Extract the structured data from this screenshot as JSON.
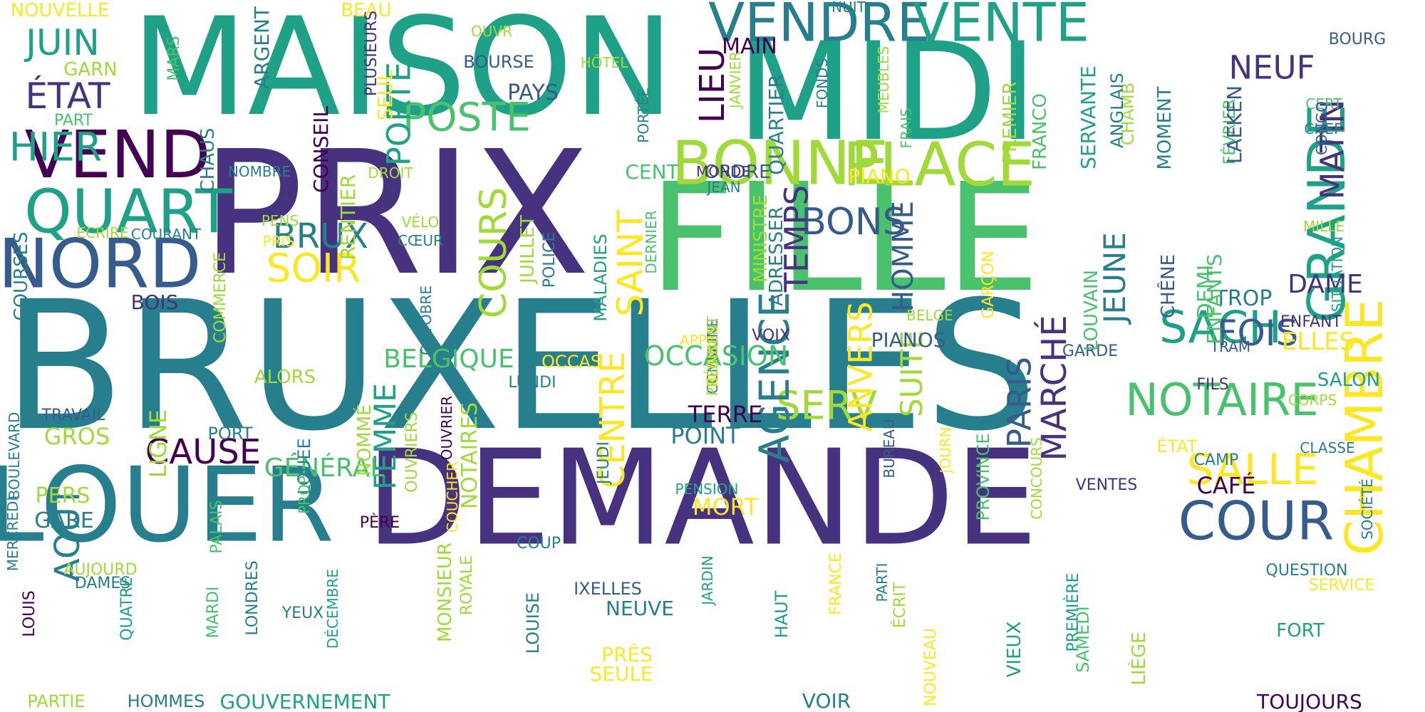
{
  "title": "",
  "palette": [
    "#440154",
    "#46327e",
    "#365c8d",
    "#277f8e",
    "#1fa187",
    "#4ac16d",
    "#a0da39",
    "#fde725"
  ],
  "words": [
    {
      "text": "BRUXELLES",
      "color": "#277f8e",
      "vertical": false
    },
    {
      "text": "MAISON",
      "color": "#1fa187",
      "vertical": false
    },
    {
      "text": "DEMANDE",
      "color": "#46327e",
      "vertical": false
    },
    {
      "text": "PRIX",
      "color": "#46327e",
      "vertical": false
    },
    {
      "text": "FILLE",
      "color": "#4ac16d",
      "vertical": false
    },
    {
      "text": "MIDI",
      "color": "#1fa187",
      "vertical": false
    },
    {
      "text": "LOUER",
      "color": "#277f8e",
      "vertical": false
    },
    {
      "text": "VENDRE",
      "color": "#277f8e",
      "vertical": false
    },
    {
      "text": "VENTE",
      "color": "#1fa187",
      "vertical": false
    },
    {
      "text": "BONNE",
      "color": "#a0da39",
      "vertical": false
    },
    {
      "text": "PLACE",
      "color": "#a0da39",
      "vertical": false
    },
    {
      "text": "GRANDE",
      "color": "#1fa187",
      "vertical": true
    },
    {
      "text": "CHAMBRE",
      "color": "#fde725",
      "vertical": true
    },
    {
      "text": "VEND",
      "color": "#440154",
      "vertical": false
    },
    {
      "text": "QUART",
      "color": "#1fa187",
      "vertical": false
    },
    {
      "text": "NORD",
      "color": "#365c8d",
      "vertical": false
    },
    {
      "text": "COUR",
      "color": "#365c8d",
      "vertical": false
    },
    {
      "text": "NOTAIRE",
      "color": "#4ac16d",
      "vertical": false
    },
    {
      "text": "SALLE",
      "color": "#fde725",
      "vertical": false
    },
    {
      "text": "SACH",
      "color": "#1fa187",
      "vertical": false
    },
    {
      "text": "FOIS",
      "color": "#365c8d",
      "vertical": false
    },
    {
      "text": "SERV",
      "color": "#a0da39",
      "vertical": false
    },
    {
      "text": "AGENCE",
      "color": "#277f8e",
      "vertical": true
    },
    {
      "text": "CAUSE",
      "color": "#440154",
      "vertical": false
    },
    {
      "text": "POSTE",
      "color": "#4ac16d",
      "vertical": false
    },
    {
      "text": "SOIR",
      "color": "#fde725",
      "vertical": false
    },
    {
      "text": "BRUX",
      "color": "#277f8e",
      "vertical": false
    },
    {
      "text": "BONS",
      "color": "#365c8d",
      "vertical": false
    },
    {
      "text": "HIER",
      "color": "#1fa187",
      "vertical": false
    },
    {
      "text": "ÉTAT",
      "color": "#46327e",
      "vertical": false
    },
    {
      "text": "JUIN",
      "color": "#1fa187",
      "vertical": false
    },
    {
      "text": "NEUF",
      "color": "#46327e",
      "vertical": false
    },
    {
      "text": "MATIN",
      "color": "#46327e",
      "vertical": true
    },
    {
      "text": "LIEU",
      "color": "#440154",
      "vertical": true
    },
    {
      "text": "COURS",
      "color": "#a0da39",
      "vertical": true
    },
    {
      "text": "SAINT",
      "color": "#fde725",
      "vertical": true
    },
    {
      "text": "TEMPS",
      "color": "#46327e",
      "vertical": true
    },
    {
      "text": "JEUNE",
      "color": "#277f8e",
      "vertical": true
    },
    {
      "text": "HOMME",
      "color": "#365c8d",
      "vertical": true
    },
    {
      "text": "ANVERS",
      "color": "#fde725",
      "vertical": true
    },
    {
      "text": "SUITE",
      "color": "#a0da39",
      "vertical": true
    },
    {
      "text": "PARIS",
      "color": "#365c8d",
      "vertical": true
    },
    {
      "text": "MARCHÉ",
      "color": "#46327e",
      "vertical": true
    },
    {
      "text": "CENTRE",
      "color": "#fde725",
      "vertical": true
    },
    {
      "text": "FEMME",
      "color": "#1fa187",
      "vertical": true
    },
    {
      "text": "PORTE",
      "color": "#1fa187",
      "vertical": true
    },
    {
      "text": "AOÛT",
      "color": "#277f8e",
      "vertical": true
    },
    {
      "text": "GÉNÉRAL",
      "color": "#4ac16d",
      "vertical": false
    },
    {
      "text": "OCCASION",
      "color": "#4ac16d",
      "vertical": false
    },
    {
      "text": "BELGIQUE",
      "color": "#4ac16d",
      "vertical": false
    },
    {
      "text": "DAME",
      "color": "#46327e",
      "vertical": false
    },
    {
      "text": "ELLES",
      "color": "#fde725",
      "vertical": false
    },
    {
      "text": "GROS",
      "color": "#a0da39",
      "vertical": false
    },
    {
      "text": "PERS",
      "color": "#a0da39",
      "vertical": false
    },
    {
      "text": "GARE",
      "color": "#277f8e",
      "vertical": false
    },
    {
      "text": "POINT",
      "color": "#277f8e",
      "vertical": false
    },
    {
      "text": "TERRE",
      "color": "#440154",
      "vertical": false
    },
    {
      "text": "MORT",
      "color": "#fde725",
      "vertical": false
    },
    {
      "text": "NEUVE",
      "color": "#277f8e",
      "vertical": false
    },
    {
      "text": "PRÉS",
      "color": "#fde725",
      "vertical": false
    },
    {
      "text": "SEULE",
      "color": "#fde725",
      "vertical": false
    },
    {
      "text": "PIANO",
      "color": "#fde725",
      "vertical": false
    },
    {
      "text": "PIANOS",
      "color": "#365c8d",
      "vertical": false
    },
    {
      "text": "PAYS",
      "color": "#365c8d",
      "vertical": false
    },
    {
      "text": "BOURSE",
      "color": "#365c8d",
      "vertical": false
    },
    {
      "text": "MAIN",
      "color": "#440154",
      "vertical": false
    },
    {
      "text": "CENT",
      "color": "#4ac16d",
      "vertical": false
    },
    {
      "text": "ORDRE",
      "color": "#365c8d",
      "vertical": false
    },
    {
      "text": "ALORS",
      "color": "#a0da39",
      "vertical": false
    },
    {
      "text": "BOIS",
      "color": "#46327e",
      "vertical": false
    },
    {
      "text": "TRAVAIL",
      "color": "#365c8d",
      "vertical": false
    },
    {
      "text": "PORT",
      "color": "#277f8e",
      "vertical": false
    },
    {
      "text": "CAFÉ",
      "color": "#440154",
      "vertical": false
    },
    {
      "text": "SALON",
      "color": "#1fa187",
      "vertical": false
    },
    {
      "text": "FORT",
      "color": "#1fa187",
      "vertical": false
    },
    {
      "text": "SERVICE",
      "color": "#fde725",
      "vertical": false
    },
    {
      "text": "TOUJOURS",
      "color": "#440154",
      "vertical": false
    },
    {
      "text": "QUESTION",
      "color": "#277f8e",
      "vertical": false
    },
    {
      "text": "GOUVERNEMENT",
      "color": "#1fa187",
      "vertical": false
    },
    {
      "text": "PARTIE",
      "color": "#a0da39",
      "vertical": false
    },
    {
      "text": "HOMMES",
      "color": "#277f8e",
      "vertical": false
    },
    {
      "text": "VOIR",
      "color": "#277f8e",
      "vertical": false
    },
    {
      "text": "IXELLES",
      "color": "#365c8d",
      "vertical": false
    },
    {
      "text": "COUP",
      "color": "#277f8e",
      "vertical": false
    },
    {
      "text": "AUJOURD",
      "color": "#a0da39",
      "vertical": false
    },
    {
      "text": "DAMES",
      "color": "#277f8e",
      "vertical": false
    },
    {
      "text": "YEUX",
      "color": "#277f8e",
      "vertical": false
    },
    {
      "text": "PÈRE",
      "color": "#440154",
      "vertical": false
    },
    {
      "text": "PENSION",
      "color": "#1fa187",
      "vertical": false
    },
    {
      "text": "VENTES",
      "color": "#46327e",
      "vertical": false
    },
    {
      "text": "CAMP",
      "color": "#277f8e",
      "vertical": false
    },
    {
      "text": "ÉTAT",
      "color": "#fde725",
      "vertical": false
    },
    {
      "text": "CLASSE",
      "color": "#277f8e",
      "vertical": false
    },
    {
      "text": "CORPS",
      "color": "#a0da39",
      "vertical": false
    },
    {
      "text": "FILS",
      "color": "#46327e",
      "vertical": false
    },
    {
      "text": "ENFANT",
      "color": "#46327e",
      "vertical": false
    },
    {
      "text": "TRAM",
      "color": "#365c8d",
      "vertical": false
    },
    {
      "text": "GARDE",
      "color": "#365c8d",
      "vertical": false
    },
    {
      "text": "MILLE",
      "color": "#a0da39",
      "vertical": false
    },
    {
      "text": "CHEF",
      "color": "#277f8e",
      "vertical": false
    },
    {
      "text": "CERT",
      "color": "#4ac16d",
      "vertical": false
    },
    {
      "text": "BOURG",
      "color": "#365c8d",
      "vertical": false
    },
    {
      "text": "LUNDI",
      "color": "#277f8e",
      "vertical": false
    },
    {
      "text": "OCCAS",
      "color": "#fde725",
      "vertical": false
    },
    {
      "text": "APPR",
      "color": "#fde725",
      "vertical": false
    },
    {
      "text": "VOIX",
      "color": "#46327e",
      "vertical": false
    },
    {
      "text": "BELGE",
      "color": "#a0da39",
      "vertical": false
    },
    {
      "text": "MONDE",
      "color": "#46327e",
      "vertical": false
    },
    {
      "text": "JEAN",
      "color": "#277f8e",
      "vertical": false
    },
    {
      "text": "NOMBRE",
      "color": "#277f8e",
      "vertical": false
    },
    {
      "text": "DROIT",
      "color": "#a0da39",
      "vertical": false
    },
    {
      "text": "ECRIRE",
      "color": "#a0da39",
      "vertical": false
    },
    {
      "text": "COURANT",
      "color": "#277f8e",
      "vertical": false
    },
    {
      "text": "PENS",
      "color": "#a0da39",
      "vertical": false
    },
    {
      "text": "PRIS",
      "color": "#fde725",
      "vertical": false
    },
    {
      "text": "VÉLO",
      "color": "#a0da39",
      "vertical": false
    },
    {
      "text": "CŒUR",
      "color": "#277f8e",
      "vertical": false
    },
    {
      "text": "GARN",
      "color": "#a0da39",
      "vertical": false
    },
    {
      "text": "PART",
      "color": "#4ac16d",
      "vertical": false
    },
    {
      "text": "NOUVELLE",
      "color": "#fde725",
      "vertical": false
    },
    {
      "text": "BEAU",
      "color": "#fde725",
      "vertical": false
    },
    {
      "text": "OUVR",
      "color": "#a0da39",
      "vertical": false
    },
    {
      "text": "HÔTEL",
      "color": "#a0da39",
      "vertical": false
    },
    {
      "text": "NUIT",
      "color": "#277f8e",
      "vertical": false
    },
    {
      "text": "TROP",
      "color": "#277f8e",
      "vertical": false
    },
    {
      "text": "DEMI",
      "color": "#4ac16d",
      "vertical": true
    },
    {
      "text": "ENFANTS",
      "color": "#4ac16d",
      "vertical": true
    },
    {
      "text": "CHÊNE",
      "color": "#365c8d",
      "vertical": true
    },
    {
      "text": "LOUVAIN",
      "color": "#4ac16d",
      "vertical": true
    },
    {
      "text": "GARÇON",
      "color": "#fde725",
      "vertical": true
    },
    {
      "text": "QUARTIER",
      "color": "#277f8e",
      "vertical": true
    },
    {
      "text": "ADRESSER",
      "color": "#277f8e",
      "vertical": true
    },
    {
      "text": "MINISTRE",
      "color": "#a0da39",
      "vertical": true
    },
    {
      "text": "JUILLET",
      "color": "#a0da39",
      "vertical": true
    },
    {
      "text": "POLICE",
      "color": "#277f8e",
      "vertical": true
    },
    {
      "text": "MALADIES",
      "color": "#1fa187",
      "vertical": true
    },
    {
      "text": "DERNIER",
      "color": "#4ac16d",
      "vertical": true
    },
    {
      "text": "RENTIER",
      "color": "#a0da39",
      "vertical": true
    },
    {
      "text": "CONSEIL",
      "color": "#440154",
      "vertical": true
    },
    {
      "text": "SEUL",
      "color": "#fde725",
      "vertical": true
    },
    {
      "text": "PLUSIEURS",
      "color": "#46327e",
      "vertical": true
    },
    {
      "text": "ARGENT",
      "color": "#277f8e",
      "vertical": true
    },
    {
      "text": "MARS",
      "color": "#4ac16d",
      "vertical": true
    },
    {
      "text": "CHAUS",
      "color": "#277f8e",
      "vertical": true
    },
    {
      "text": "COURSES",
      "color": "#277f8e",
      "vertical": true
    },
    {
      "text": "COMMERCE",
      "color": "#a0da39",
      "vertical": true
    },
    {
      "text": "OCTOBRE",
      "color": "#277f8e",
      "vertical": true
    },
    {
      "text": "LIGNE",
      "color": "#a0da39",
      "vertical": true
    },
    {
      "text": "BOULEVARD",
      "color": "#277f8e",
      "vertical": true
    },
    {
      "text": "MERCREDI",
      "color": "#277f8e",
      "vertical": true
    },
    {
      "text": "PALAIS",
      "color": "#4ac16d",
      "vertical": true
    },
    {
      "text": "LOUÉE",
      "color": "#277f8e",
      "vertical": true
    },
    {
      "text": "PROP",
      "color": "#4ac16d",
      "vertical": true
    },
    {
      "text": "NOMMÉ",
      "color": "#a0da39",
      "vertical": true
    },
    {
      "text": "OUVRIERS",
      "color": "#a0da39",
      "vertical": true
    },
    {
      "text": "COUCHER",
      "color": "#fde725",
      "vertical": true
    },
    {
      "text": "NOTAIRES",
      "color": "#a0da39",
      "vertical": true
    },
    {
      "text": "OUVRIER",
      "color": "#440154",
      "vertical": true
    },
    {
      "text": "JEUDI",
      "color": "#277f8e",
      "vertical": true
    },
    {
      "text": "MONSIEUR",
      "color": "#a0da39",
      "vertical": true
    },
    {
      "text": "ROYALE",
      "color": "#a0da39",
      "vertical": true
    },
    {
      "text": "LOUISE",
      "color": "#277f8e",
      "vertical": true
    },
    {
      "text": "DÉCEMBRE",
      "color": "#1fa187",
      "vertical": true
    },
    {
      "text": "LONDRES",
      "color": "#277f8e",
      "vertical": true
    },
    {
      "text": "MARDI",
      "color": "#4ac16d",
      "vertical": true
    },
    {
      "text": "QUATRE",
      "color": "#1fa187",
      "vertical": true
    },
    {
      "text": "LOUIS",
      "color": "#440154",
      "vertical": true
    },
    {
      "text": "HAUT",
      "color": "#1fa187",
      "vertical": true
    },
    {
      "text": "JARDIN",
      "color": "#1fa187",
      "vertical": true
    },
    {
      "text": "PARTI",
      "color": "#277f8e",
      "vertical": true
    },
    {
      "text": "ÉCRIT",
      "color": "#a0da39",
      "vertical": true
    },
    {
      "text": "NOUVEAU",
      "color": "#fde725",
      "vertical": true
    },
    {
      "text": "VIEUX",
      "color": "#1fa187",
      "vertical": true
    },
    {
      "text": "SAMEDI",
      "color": "#4ac16d",
      "vertical": true
    },
    {
      "text": "PREMIÈRE",
      "color": "#1fa187",
      "vertical": true
    },
    {
      "text": "LIÈGE",
      "color": "#a0da39",
      "vertical": true
    },
    {
      "text": "FRANCE",
      "color": "#fde725",
      "vertical": true
    },
    {
      "text": "BUREAU",
      "color": "#365c8d",
      "vertical": true
    },
    {
      "text": "JOURN",
      "color": "#fde725",
      "vertical": true
    },
    {
      "text": "PROVINCE",
      "color": "#4ac16d",
      "vertical": true
    },
    {
      "text": "CONCOURS",
      "color": "#a0da39",
      "vertical": true
    },
    {
      "text": "SOCIÉTÉ",
      "color": "#277f8e",
      "vertical": true
    },
    {
      "text": "PREMIER",
      "color": "#a0da39",
      "vertical": true
    },
    {
      "text": "FRANCO",
      "color": "#4ac16d",
      "vertical": true
    },
    {
      "text": "SERVANTE",
      "color": "#1fa187",
      "vertical": true
    },
    {
      "text": "CHAMB",
      "color": "#a0da39",
      "vertical": true
    },
    {
      "text": "ANGLAIS",
      "color": "#277f8e",
      "vertical": true
    },
    {
      "text": "MOMENT",
      "color": "#277f8e",
      "vertical": true
    },
    {
      "text": "FÉVRIER",
      "color": "#4ac16d",
      "vertical": true
    },
    {
      "text": "LAEKEN",
      "color": "#365c8d",
      "vertical": true
    },
    {
      "text": "CONGO",
      "color": "#365c8d",
      "vertical": true
    },
    {
      "text": "SITUATION",
      "color": "#1fa187",
      "vertical": true
    },
    {
      "text": "FRAIS",
      "color": "#4ac16d",
      "vertical": true
    },
    {
      "text": "MEUBLES",
      "color": "#a0da39",
      "vertical": true
    },
    {
      "text": "FONDS",
      "color": "#277f8e",
      "vertical": true
    },
    {
      "text": "JANVIER",
      "color": "#a0da39",
      "vertical": true
    },
    {
      "text": "PORTÉE",
      "color": "#277f8e",
      "vertical": true
    },
    {
      "text": "COMMUNE",
      "color": "#277f8e",
      "vertical": true
    },
    {
      "text": "BONNES",
      "color": "#fde725",
      "vertical": true
    },
    {
      "text": "PRÉSIDENT",
      "color": "#a0da39",
      "vertical": true
    }
  ]
}
